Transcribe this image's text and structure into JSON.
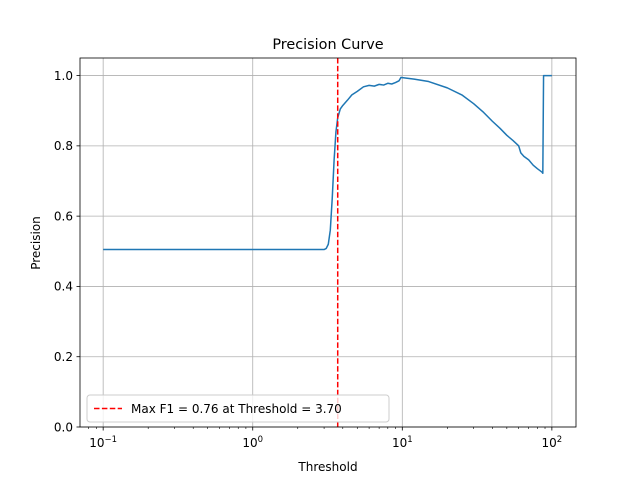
{
  "chart_data": {
    "type": "line",
    "title": "Precision Curve",
    "xlabel": "Threshold",
    "ylabel": "Precision",
    "xscale": "log",
    "xlim": [
      0.07,
      145
    ],
    "ylim": [
      0.0,
      1.05
    ],
    "xticks": [
      {
        "value": 0.1,
        "base": "10",
        "exp": "−1"
      },
      {
        "value": 1,
        "base": "10",
        "exp": "0"
      },
      {
        "value": 10,
        "base": "10",
        "exp": "1"
      },
      {
        "value": 100,
        "base": "10",
        "exp": "2"
      }
    ],
    "yticks": [
      {
        "value": 0.0,
        "label": "0.0"
      },
      {
        "value": 0.2,
        "label": "0.2"
      },
      {
        "value": 0.4,
        "label": "0.4"
      },
      {
        "value": 0.6,
        "label": "0.6"
      },
      {
        "value": 0.8,
        "label": "0.8"
      },
      {
        "value": 1.0,
        "label": "1.0"
      }
    ],
    "grid": true,
    "legend_position": "lower-left",
    "series": [
      {
        "color": "#1f77b4",
        "x": [
          0.1,
          0.3,
          1.0,
          2.0,
          3.0,
          3.1,
          3.2,
          3.3,
          3.4,
          3.5,
          3.6,
          3.7,
          3.85,
          4.0,
          4.3,
          4.6,
          5.0,
          5.5,
          6.0,
          6.5,
          7.0,
          7.5,
          8.0,
          8.5,
          9.0,
          9.5,
          9.8,
          10.0,
          12.0,
          15.0,
          20.0,
          25.0,
          30.0,
          35.0,
          40.0,
          45.0,
          50.0,
          55.0,
          60.0,
          62.0,
          65.0,
          70.0,
          75.0,
          80.0,
          86.0,
          87.0,
          88.0,
          90.0,
          100.0
        ],
        "y": [
          0.505,
          0.505,
          0.505,
          0.505,
          0.505,
          0.508,
          0.52,
          0.56,
          0.65,
          0.76,
          0.84,
          0.88,
          0.905,
          0.915,
          0.93,
          0.945,
          0.955,
          0.968,
          0.972,
          0.97,
          0.975,
          0.973,
          0.978,
          0.976,
          0.98,
          0.985,
          0.995,
          0.994,
          0.99,
          0.983,
          0.965,
          0.945,
          0.92,
          0.895,
          0.87,
          0.85,
          0.83,
          0.815,
          0.8,
          0.78,
          0.77,
          0.76,
          0.745,
          0.735,
          0.725,
          0.722,
          1.0,
          1.0,
          1.0
        ]
      }
    ],
    "vline": {
      "x": 3.7,
      "color": "#ff0000",
      "style": "dashed",
      "label": "Max F1 = 0.76 at Threshold = 3.70"
    }
  }
}
